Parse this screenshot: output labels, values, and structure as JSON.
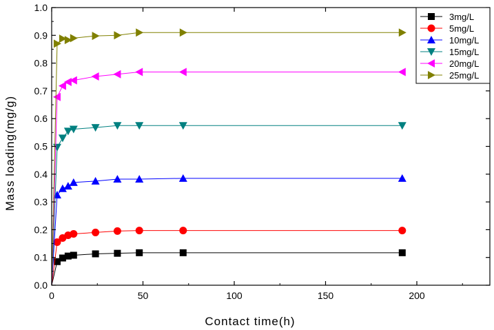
{
  "chart_data": {
    "type": "line",
    "xlabel": "Contact time(h)",
    "ylabel": "Mass loading(mg/g)",
    "xlim": [
      0,
      240
    ],
    "ylim": [
      0,
      1.0
    ],
    "x_ticks": [
      0,
      50,
      100,
      150,
      200
    ],
    "x_tick_labels": [
      "0",
      "50",
      "100",
      "150",
      "200"
    ],
    "y_ticks": [
      0.0,
      0.1,
      0.2,
      0.3,
      0.4,
      0.5,
      0.6,
      0.7,
      0.8,
      0.9,
      1.0
    ],
    "y_tick_labels": [
      "0.0",
      "0.1",
      "0.2",
      "0.3",
      "0.4",
      "0.5",
      "0.6",
      "0.7",
      "0.8",
      "0.9",
      "1.0"
    ],
    "legend_position": "top-right",
    "x": [
      0,
      3,
      6,
      9,
      12,
      24,
      36,
      48,
      72,
      192
    ],
    "series": [
      {
        "name": "3mg/L",
        "color": "#000000",
        "marker": "square",
        "values": [
          0,
          0.085,
          0.098,
          0.105,
          0.108,
          0.113,
          0.115,
          0.117,
          0.117,
          0.117
        ]
      },
      {
        "name": "5mg/L",
        "color": "#ff0000",
        "marker": "circle",
        "values": [
          0,
          0.155,
          0.17,
          0.18,
          0.185,
          0.19,
          0.195,
          0.197,
          0.197,
          0.197
        ]
      },
      {
        "name": "10mg/L",
        "color": "#0000ff",
        "marker": "triangle-up",
        "values": [
          0,
          0.325,
          0.348,
          0.357,
          0.37,
          0.375,
          0.382,
          0.382,
          0.385,
          0.385
        ]
      },
      {
        "name": "15mg/L",
        "color": "#008080",
        "marker": "triangle-down",
        "values": [
          0,
          0.497,
          0.53,
          0.555,
          0.562,
          0.568,
          0.575,
          0.575,
          0.575,
          0.575
        ]
      },
      {
        "name": "20mg/L",
        "color": "#ff00ff",
        "marker": "triangle-left",
        "values": [
          0,
          0.678,
          0.718,
          0.732,
          0.738,
          0.752,
          0.76,
          0.768,
          0.768,
          0.768
        ]
      },
      {
        "name": "25mg/L",
        "color": "#808000",
        "marker": "triangle-right",
        "values": [
          0,
          0.87,
          0.888,
          0.883,
          0.89,
          0.898,
          0.9,
          0.91,
          0.91,
          0.91
        ]
      }
    ]
  }
}
